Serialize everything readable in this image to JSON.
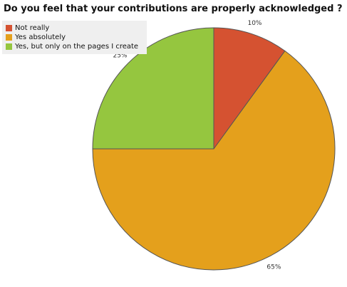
{
  "chart_data": {
    "type": "pie",
    "title": "Do you feel that your contributions are properly acknowledged ?",
    "categories": [
      "Not really",
      "Yes absolutely",
      "Yes, but only on the pages I create"
    ],
    "values": [
      10,
      65,
      25
    ],
    "value_labels": [
      "10%",
      "65%",
      "25%"
    ],
    "colors": [
      "#d55231",
      "#e4a01c",
      "#95c63f"
    ],
    "start_angle_deg": 0,
    "direction": "clockwise",
    "legend_position": "top-left"
  }
}
